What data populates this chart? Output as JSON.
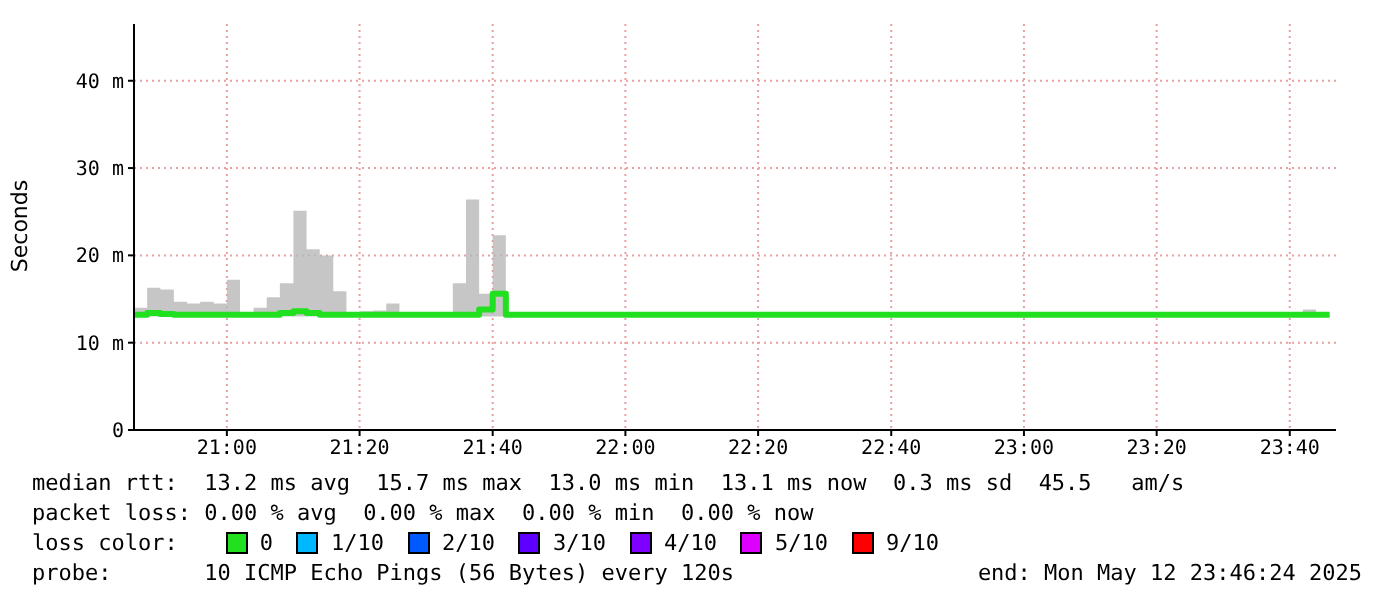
{
  "chart_data": {
    "type": "step",
    "ylabel": "Seconds",
    "legend_title": "loss color:",
    "legend": "bottom",
    "grid": true,
    "x": [
      20.767,
      20.8,
      20.833,
      20.867,
      20.9,
      20.933,
      20.967,
      21.0,
      21.033,
      21.067,
      21.1,
      21.133,
      21.167,
      21.2,
      21.233,
      21.267,
      21.3,
      21.333,
      21.367,
      21.4,
      21.433,
      21.467,
      21.5,
      21.533,
      21.567,
      21.6,
      21.633,
      21.667,
      21.7,
      23.7,
      23.733,
      23.767
    ],
    "xlim": [
      20.767,
      23.783
    ],
    "xticks": [
      {
        "value": 21,
        "label": "21:00"
      },
      {
        "value": 21.333,
        "label": "21:20"
      },
      {
        "value": 21.667,
        "label": "21:40"
      },
      {
        "value": 22,
        "label": "22:00"
      },
      {
        "value": 22.333,
        "label": "22:20"
      },
      {
        "value": 22.667,
        "label": "22:40"
      },
      {
        "value": 23,
        "label": "23:00"
      },
      {
        "value": 23.333,
        "label": "23:20"
      },
      {
        "value": 23.667,
        "label": "23:40"
      }
    ],
    "ylim": [
      0,
      46.5
    ],
    "yticks": [
      0,
      {
        "value": 10,
        "label": "10 m"
      },
      {
        "value": 20,
        "label": "20 m"
      },
      {
        "value": 30,
        "label": "30 m"
      },
      {
        "value": 40,
        "label": "40 m"
      }
    ],
    "series": [
      {
        "name": "0",
        "color": "#20e020",
        "values": [
          13.2,
          13.4,
          13.3,
          13.2,
          13.2,
          13.2,
          13.2,
          13.2,
          13.2,
          13.2,
          13.2,
          13.4,
          13.6,
          13.4,
          13.2,
          13.2,
          13.2,
          13.2,
          13.2,
          13.2,
          13.2,
          13.2,
          13.2,
          13.2,
          13.2,
          13.2,
          13.8,
          15.6,
          13.2,
          13.2,
          13.2,
          13.2
        ],
        "lower": [
          13.0,
          13.0,
          13.0,
          13.0,
          13.0,
          13.0,
          13.0,
          13.0,
          13.0,
          13.0,
          13.0,
          13.0,
          13.0,
          13.0,
          13.0,
          13.0,
          13.0,
          13.0,
          13.0,
          13.0,
          13.0,
          13.0,
          13.0,
          13.0,
          13.0,
          13.0,
          13.0,
          13.0,
          13.0,
          13.0,
          13.0,
          13.0
        ],
        "upper": [
          14.0,
          16.3,
          16.1,
          14.7,
          14.5,
          14.7,
          14.5,
          17.2,
          13.2,
          14.0,
          15.2,
          16.8,
          25.1,
          20.7,
          20.0,
          15.9,
          13.2,
          13.6,
          13.7,
          14.5,
          13.2,
          13.2,
          13.2,
          13.2,
          16.8,
          26.4,
          15.6,
          22.3,
          13.2,
          13.8,
          13.2,
          13.2
        ]
      },
      {
        "name": "1/10",
        "color": "#00b8ff",
        "values": [
          null,
          null,
          null,
          null,
          null,
          null,
          null,
          null,
          null,
          null,
          null,
          null,
          null,
          null,
          null,
          null,
          null,
          null,
          null,
          null,
          null,
          null,
          null,
          null,
          null,
          null,
          null,
          null,
          null,
          null,
          null,
          null
        ]
      },
      {
        "name": "2/10",
        "color": "#0059ff",
        "values": [
          null,
          null,
          null,
          null,
          null,
          null,
          null,
          null,
          null,
          null,
          null,
          null,
          null,
          null,
          null,
          null,
          null,
          null,
          null,
          null,
          null,
          null,
          null,
          null,
          null,
          null,
          null,
          null,
          null,
          null,
          null,
          null
        ]
      },
      {
        "name": "3/10",
        "color": "#5e00ff",
        "values": [
          null,
          null,
          null,
          null,
          null,
          null,
          null,
          null,
          null,
          null,
          null,
          null,
          null,
          null,
          null,
          null,
          null,
          null,
          null,
          null,
          null,
          null,
          null,
          null,
          null,
          null,
          null,
          null,
          null,
          null,
          null,
          null
        ]
      },
      {
        "name": "4/10",
        "color": "#7e00ff",
        "values": [
          null,
          null,
          null,
          null,
          null,
          null,
          null,
          null,
          null,
          null,
          null,
          null,
          null,
          null,
          null,
          null,
          null,
          null,
          null,
          null,
          null,
          null,
          null,
          null,
          null,
          null,
          null,
          null,
          null,
          null,
          null,
          null
        ]
      },
      {
        "name": "5/10",
        "color": "#dd00ff",
        "values": [
          null,
          null,
          null,
          null,
          null,
          null,
          null,
          null,
          null,
          null,
          null,
          null,
          null,
          null,
          null,
          null,
          null,
          null,
          null,
          null,
          null,
          null,
          null,
          null,
          null,
          null,
          null,
          null,
          null,
          null,
          null,
          null
        ]
      },
      {
        "name": "9/10",
        "color": "#ff0000",
        "values": [
          null,
          null,
          null,
          null,
          null,
          null,
          null,
          null,
          null,
          null,
          null,
          null,
          null,
          null,
          null,
          null,
          null,
          null,
          null,
          null,
          null,
          null,
          null,
          null,
          null,
          null,
          null,
          null,
          null,
          null,
          null,
          null
        ]
      }
    ],
    "annotations": [
      "median rtt:  13.2 ms avg  15.7 ms max  13.0 ms min  13.1 ms now  0.3 ms sd  45.5   am/s",
      "packet loss: 0.00 % avg  0.00 % max  0.00 % min  0.00 % now",
      "probe:       10 ICMP Echo Pings (56 Bytes) every 120s",
      "end: Mon May 12 23:46:24 2025"
    ]
  }
}
